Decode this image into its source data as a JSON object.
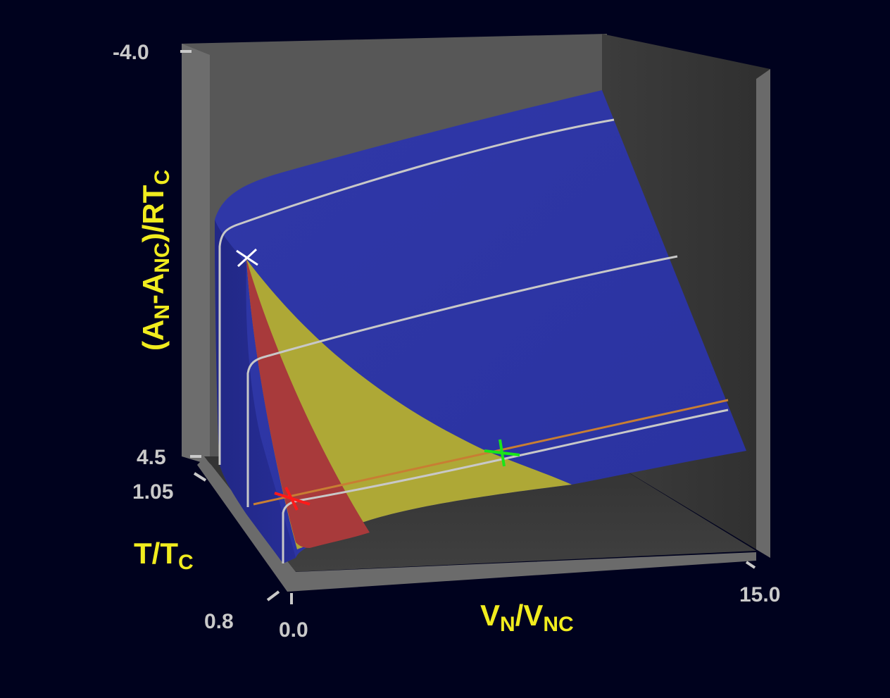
{
  "diagram": {
    "axes": {
      "free_energy": {
        "label_main": "(A",
        "label_sub1": "N",
        "label_mid": "-A",
        "label_sub2": "NC",
        "label_tail": ")/RT",
        "label_sub3": "C",
        "tick_top": "-4.0",
        "tick_bottom": "4.5"
      },
      "temperature": {
        "label_main": "T/T",
        "label_sub": "C",
        "tick_top": "1.05",
        "tick_bottom": "0.8"
      },
      "volume": {
        "label_main": "V",
        "label_sub1": "N",
        "label_mid": "/V",
        "label_sub2": "NC",
        "tick_left": "0.0",
        "tick_right": "15.0"
      }
    },
    "regions": [
      {
        "name": "stable",
        "color": "#2e36a6"
      },
      {
        "name": "metastable",
        "color": "#aea836"
      },
      {
        "name": "unstable",
        "color": "#a83a3b"
      }
    ],
    "markers": [
      {
        "name": "critical-point",
        "color": "#ffffff"
      },
      {
        "name": "liquid-point",
        "color": "#ff1a1a"
      },
      {
        "name": "vapor-point",
        "color": "#19e619"
      }
    ],
    "colors": {
      "background": "#00021e",
      "box_wall": "#575757",
      "box_floor": "#3a3a3a",
      "isotherm": "#c8c8c8",
      "tie_line": "#c87e33"
    }
  }
}
